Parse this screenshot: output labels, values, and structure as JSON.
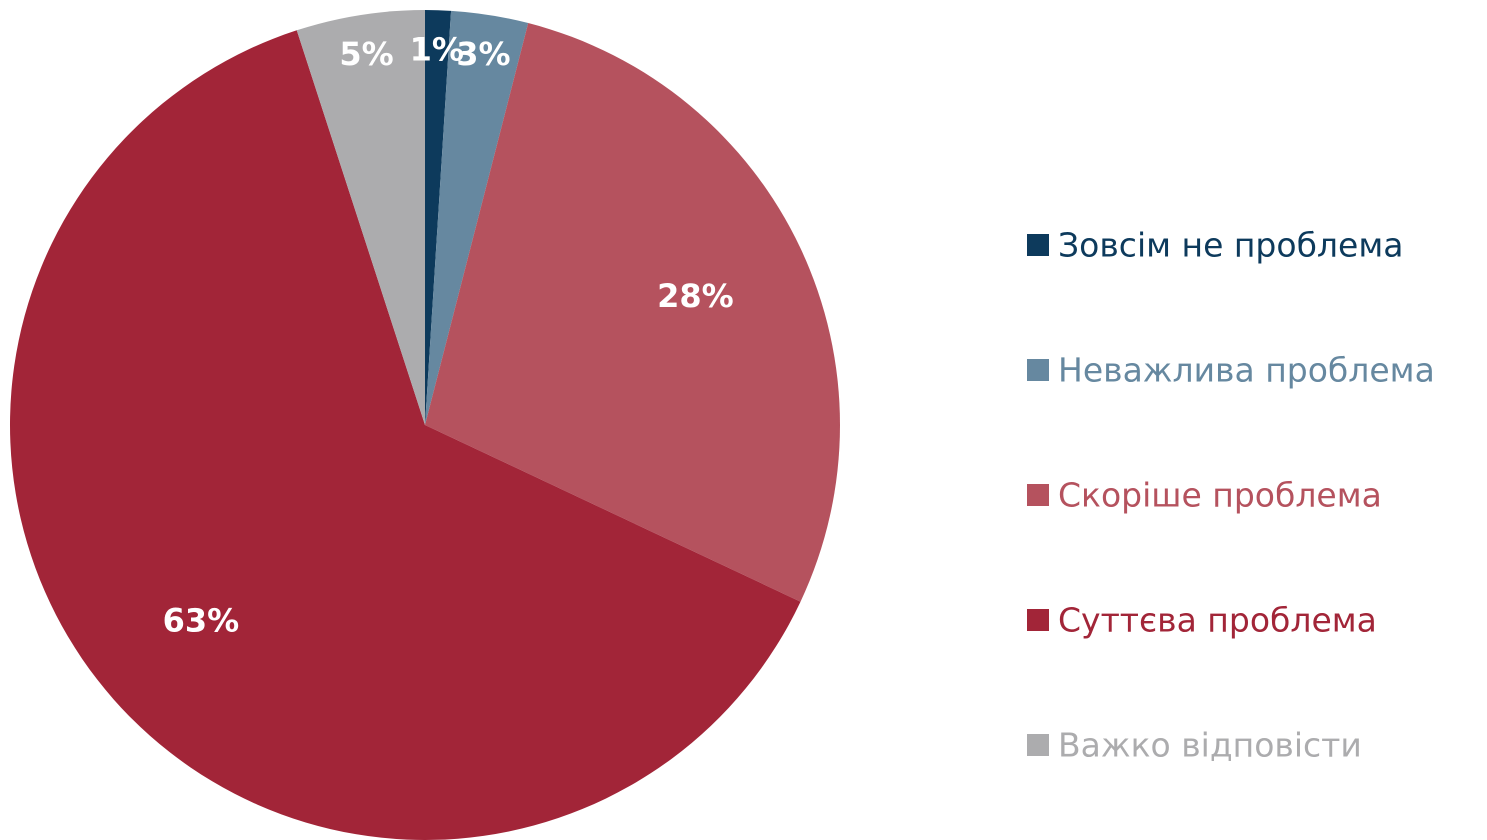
{
  "chart_data": {
    "type": "pie",
    "categories": [
      "Зовсім не проблема",
      "Неважлива проблема",
      "Скоріше проблема",
      "Суттєва проблема",
      "Важко відповісти"
    ],
    "values": [
      1,
      3,
      28,
      63,
      5
    ],
    "value_labels": [
      "1%",
      "3%",
      "28%",
      "63%",
      "5%"
    ],
    "colors": [
      "#0d3a5c",
      "#6688a0",
      "#b5525e",
      "#a22538",
      "#acacae"
    ],
    "legend": "right"
  }
}
